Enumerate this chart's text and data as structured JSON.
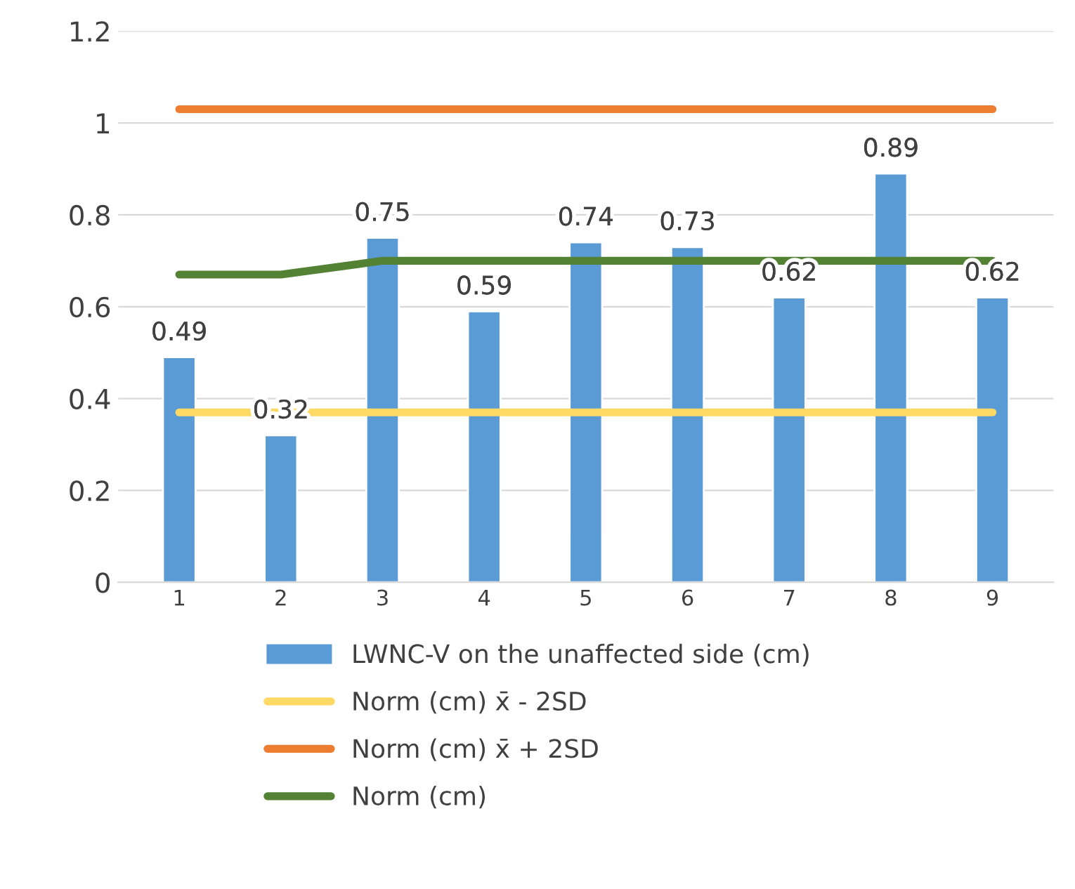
{
  "chart_data": {
    "type": "bar",
    "categories": [
      "1",
      "2",
      "3",
      "4",
      "5",
      "6",
      "7",
      "8",
      "9"
    ],
    "series": [
      {
        "name": "LWNC-V on the unaffected side (cm)",
        "color": "#5b9bd5",
        "values": [
          0.49,
          0.32,
          0.75,
          0.59,
          0.74,
          0.73,
          0.62,
          0.89,
          0.62
        ],
        "value_labels": [
          "0.49",
          "0.32",
          "0.75",
          "0.59",
          "0.74",
          "0.73",
          "0.62",
          "0.89",
          "0.62"
        ]
      },
      {
        "name": "Norm (cm) x̄ - 2SD",
        "type": "line",
        "color": "#ffd966",
        "values": [
          0.37,
          0.37,
          0.37,
          0.37,
          0.37,
          0.37,
          0.37,
          0.37,
          0.37
        ]
      },
      {
        "name": "Norm (cm) x̄ + 2SD",
        "type": "line",
        "color": "#ed7d31",
        "values": [
          1.03,
          1.03,
          1.03,
          1.03,
          1.03,
          1.03,
          1.03,
          1.03,
          1.03
        ]
      },
      {
        "name": "Norm (cm)",
        "type": "line",
        "color": "#548235",
        "values": [
          0.67,
          0.67,
          0.7,
          0.7,
          0.7,
          0.7,
          0.7,
          0.7,
          0.7
        ]
      }
    ],
    "ylim": [
      0,
      1.2
    ],
    "yticks": [
      0,
      {
        "value": 0.2,
        "label": "0.2"
      },
      {
        "value": 0.4,
        "label": "0.4"
      },
      {
        "value": 0.6,
        "label": "0.6"
      },
      {
        "value": 0.8,
        "label": "0.8"
      },
      1,
      {
        "value": 1.2,
        "label": "1.2"
      }
    ],
    "grid": "y",
    "legend": "bottom",
    "marker": "none",
    "line_style": "solid"
  }
}
